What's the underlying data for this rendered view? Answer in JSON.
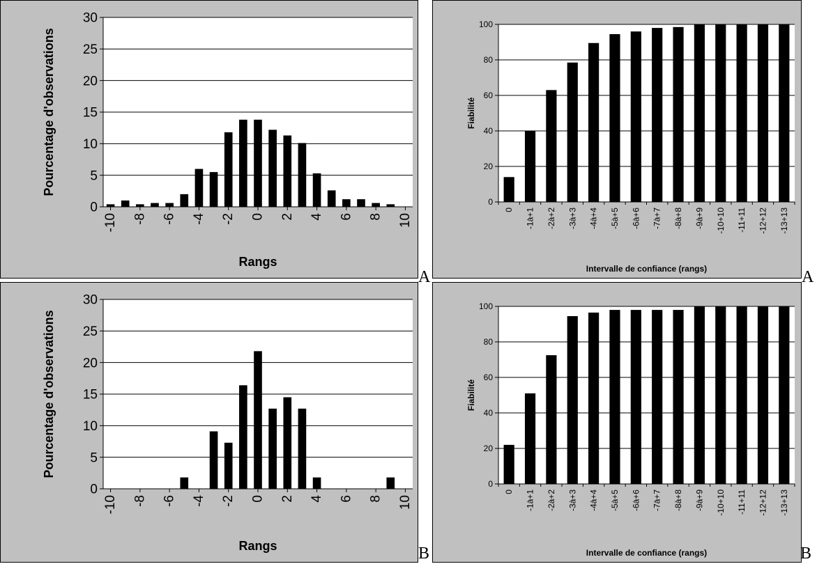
{
  "corner_labels": [
    "A",
    "A",
    "B",
    "B"
  ],
  "chart_data": [
    {
      "id": "dist-A",
      "type": "bar",
      "xlabel": "Rangs",
      "ylabel": "Pourcentage d'observations",
      "ylim": [
        0,
        30
      ],
      "yticks": [
        0,
        5,
        10,
        15,
        20,
        25,
        30
      ],
      "x": [
        -10,
        -9,
        -8,
        -7,
        -6,
        -5,
        -4,
        -3,
        -2,
        -1,
        0,
        1,
        2,
        3,
        4,
        5,
        6,
        7,
        8,
        9,
        10
      ],
      "xtick_labels": [
        "-10",
        "-8",
        "-6",
        "-4",
        "-2",
        "0",
        "2",
        "4",
        "6",
        "8",
        "10"
      ],
      "values": [
        0.4,
        1.0,
        0.4,
        0.6,
        0.6,
        2.0,
        6.0,
        5.5,
        11.8,
        13.8,
        13.8,
        12.2,
        11.3,
        10.1,
        5.3,
        2.6,
        1.2,
        1.2,
        0.6,
        0.4,
        0
      ],
      "grid": true,
      "legend": "none"
    },
    {
      "id": "fiab-A",
      "type": "bar",
      "xlabel": "Intervalle de confiance (rangs)",
      "ylabel": "Fiabilité",
      "ylim": [
        0,
        100
      ],
      "yticks": [
        0,
        20,
        40,
        60,
        80,
        100
      ],
      "categories": [
        "0",
        "-1à+1",
        "-2à+2",
        "-3à+3",
        "-4à+4",
        "-5à+5",
        "-6à+6",
        "-7à+7",
        "-8à+8",
        "-9à+9",
        "-10+10",
        "-11+11",
        "-12+12",
        "-13+13"
      ],
      "values": [
        14,
        40,
        63,
        78.5,
        89.5,
        94.5,
        96,
        98,
        98.5,
        100,
        100,
        100,
        100,
        100
      ],
      "grid": true,
      "legend": "none"
    },
    {
      "id": "dist-B",
      "type": "bar",
      "xlabel": "Rangs",
      "ylabel": "Pourcentage d'observations",
      "ylim": [
        0,
        30
      ],
      "yticks": [
        0,
        5,
        10,
        15,
        20,
        25,
        30
      ],
      "x": [
        -10,
        -9,
        -8,
        -7,
        -6,
        -5,
        -4,
        -3,
        -2,
        -1,
        0,
        1,
        2,
        3,
        4,
        5,
        6,
        7,
        8,
        9,
        10
      ],
      "xtick_labels": [
        "-10",
        "-8",
        "-6",
        "-4",
        "-2",
        "0",
        "2",
        "4",
        "6",
        "8",
        "10"
      ],
      "values": [
        0,
        0,
        0,
        0,
        0,
        1.8,
        0,
        9.1,
        7.3,
        16.4,
        21.8,
        12.7,
        14.5,
        12.7,
        1.8,
        0,
        0,
        0,
        0,
        1.8,
        0
      ],
      "grid": true,
      "legend": "none"
    },
    {
      "id": "fiab-B",
      "type": "bar",
      "xlabel": "Intervalle de confiance (rangs)",
      "ylabel": "Fiabilité",
      "ylim": [
        0,
        100
      ],
      "yticks": [
        0,
        20,
        40,
        60,
        80,
        100
      ],
      "categories": [
        "0",
        "-1à+1",
        "-2à+2",
        "-3à+3",
        "-4à+4",
        "-5à+5",
        "-6à+6",
        "-7à+7",
        "-8à+8",
        "-9à+9",
        "-10+10",
        "-11+11",
        "-12+12",
        "-13+13"
      ],
      "values": [
        22,
        51,
        72.5,
        94.5,
        96.5,
        98,
        98,
        98,
        98,
        100,
        100,
        100,
        100,
        100
      ],
      "grid": true,
      "legend": "none"
    }
  ],
  "colors": {
    "panel_bg": "#c0c0c0",
    "plot_bg": "#ffffff",
    "bar": "#000000",
    "grid": "#000000"
  }
}
